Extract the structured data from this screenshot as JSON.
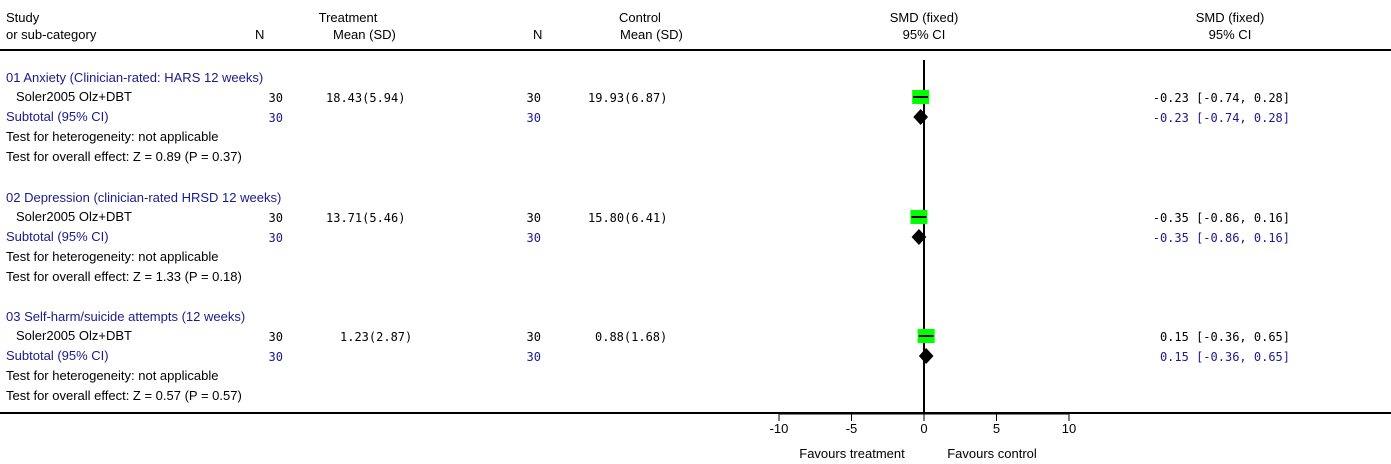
{
  "header": {
    "study_line1": "Study",
    "study_line2": "or sub-category",
    "treatment_label": "Treatment",
    "n_label": "N",
    "mean_sd_label": "Mean (SD)",
    "control_label": "Control",
    "n_label_ctrl": "N",
    "mean_sd_label_ctrl": "Mean (SD)",
    "smd_label": "SMD (fixed)",
    "ci_label": "95% CI",
    "smd_label_right": "SMD (fixed)",
    "ci_label_right": "95% CI"
  },
  "groups": [
    {
      "title": "01 Anxiety (Clinician-rated: HARS 12 weeks)",
      "study": "Soler2005 Olz+DBT",
      "t_n": "30",
      "t_mean_sd": "18.43(5.94)",
      "c_n": "30",
      "c_mean_sd": "19.93(6.87)",
      "ci_text": "-0.23 [-0.74, 0.28]",
      "subtotal_label": "Subtotal (95% CI)",
      "sub_t_n": "30",
      "sub_c_n": "30",
      "sub_ci_text": "-0.23 [-0.74, 0.28]",
      "heterogeneity": "Test for heterogeneity: not applicable",
      "overall": "Test for overall effect: Z = 0.89 (P = 0.37)"
    },
    {
      "title": "02 Depression (clinician-rated HRSD 12 weeks)",
      "study": "Soler2005 Olz+DBT",
      "t_n": "30",
      "t_mean_sd": "13.71(5.46)",
      "c_n": "30",
      "c_mean_sd": "15.80(6.41)",
      "ci_text": "-0.35 [-0.86, 0.16]",
      "subtotal_label": "Subtotal (95% CI)",
      "sub_t_n": "30",
      "sub_c_n": "30",
      "sub_ci_text": "-0.35 [-0.86, 0.16]",
      "heterogeneity": "Test for heterogeneity: not applicable",
      "overall": "Test for overall effect: Z = 1.33 (P = 0.18)"
    },
    {
      "title": "03 Self-harm/suicide attempts (12 weeks)",
      "study": "Soler2005 Olz+DBT",
      "t_n": "30",
      "t_mean_sd": "1.23(2.87)",
      "c_n": "30",
      "c_mean_sd": "0.88(1.68)",
      "ci_text": "0.15 [-0.36, 0.65]",
      "subtotal_label": "Subtotal (95% CI)",
      "sub_t_n": "30",
      "sub_c_n": "30",
      "sub_ci_text": "0.15 [-0.36, 0.65]",
      "heterogeneity": "Test for heterogeneity: not applicable",
      "overall": "Test for overall effect: Z = 0.57 (P = 0.57)"
    }
  ],
  "footer": {
    "favours_left": "Favours treatment",
    "favours_right": "Favours control"
  },
  "colors": {
    "study_box": "#00ff00",
    "diamond": "#000000",
    "blue_text": "#1a1a8c"
  },
  "chart_data": {
    "type": "forest",
    "measure": "SMD (fixed)",
    "xlim": [
      -10,
      10
    ],
    "xticks": [
      -10,
      -5,
      0,
      5,
      10
    ],
    "xtick_labels": [
      "-10",
      "-5",
      "0",
      "5",
      "10"
    ],
    "series": [
      {
        "name": "01 Anxiety (Clinician-rated: HARS 12 weeks)",
        "estimate": -0.23,
        "lower": -0.74,
        "upper": 0.28,
        "subtotal": -0.23,
        "subtotal_lower": -0.74,
        "subtotal_upper": 0.28
      },
      {
        "name": "02 Depression (clinician-rated HRSD 12 weeks)",
        "estimate": -0.35,
        "lower": -0.86,
        "upper": 0.16,
        "subtotal": -0.35,
        "subtotal_lower": -0.86,
        "subtotal_upper": 0.16
      },
      {
        "name": "03 Self-harm/suicide attempts (12 weeks)",
        "estimate": 0.15,
        "lower": -0.36,
        "upper": 0.65,
        "subtotal": 0.15,
        "subtotal_lower": -0.36,
        "subtotal_upper": 0.65
      }
    ]
  }
}
